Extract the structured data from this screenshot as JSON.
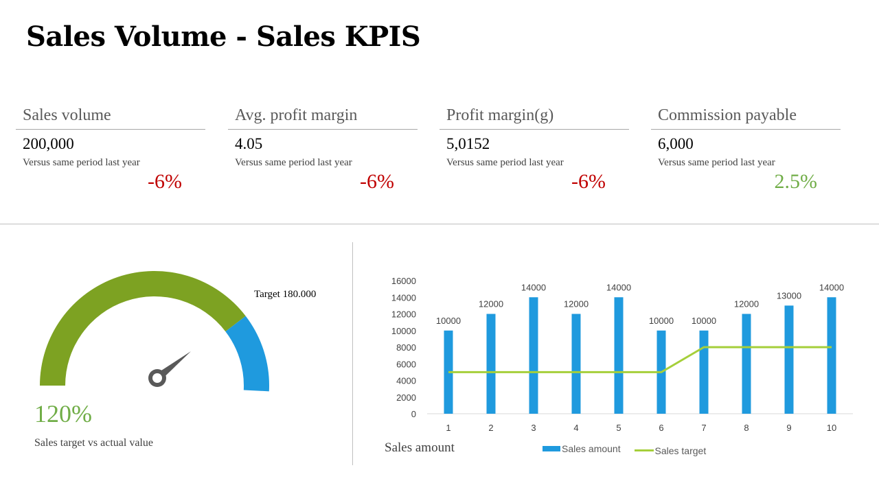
{
  "title": "Sales Volume - Sales KPIS",
  "kpis": [
    {
      "label": "Sales volume",
      "value": "200,000",
      "sub": "Versus same period  last year",
      "change": "-6%",
      "color": "#c00000"
    },
    {
      "label": "Avg. profit margin",
      "value": "4.05",
      "sub": "Versus same period  last year",
      "change": "-6%",
      "color": "#c00000"
    },
    {
      "label": "Profit margin(g)",
      "value": "5,0152",
      "sub": "Versus same period  last year",
      "change": "-6%",
      "color": "#c00000"
    },
    {
      "label": "Commission payable",
      "value": "6,000",
      "sub": "Versus same period  last year",
      "change": "2.5%",
      "color": "#70ad47"
    }
  ],
  "gauge": {
    "target_label": "Target 180.000",
    "value_label": "120%",
    "caption": "Sales target vs actual value",
    "green_fraction": 0.78,
    "green_color": "#7da222",
    "blue_color": "#1f9ade",
    "needle_color": "#595959"
  },
  "chart": {
    "caption": "Sales amount",
    "legend": {
      "bar": "Sales amount",
      "line": "Sales target"
    }
  },
  "chart_data": {
    "type": "bar",
    "categories": [
      "1",
      "2",
      "3",
      "4",
      "5",
      "6",
      "7",
      "8",
      "9",
      "10"
    ],
    "series": [
      {
        "name": "Sales amount",
        "type": "bar",
        "color": "#1f9ade",
        "values": [
          10000,
          12000,
          14000,
          12000,
          14000,
          10000,
          10000,
          12000,
          13000,
          14000
        ]
      },
      {
        "name": "Sales target",
        "type": "line",
        "color": "#a5cf3a",
        "values": [
          5000,
          5000,
          5000,
          5000,
          5000,
          5000,
          8000,
          8000,
          8000,
          8000
        ]
      }
    ],
    "ylim": [
      0,
      16000
    ],
    "yticks": [
      0,
      2000,
      4000,
      6000,
      8000,
      10000,
      12000,
      14000,
      16000
    ],
    "data_labels": true,
    "legend": "bottom"
  }
}
